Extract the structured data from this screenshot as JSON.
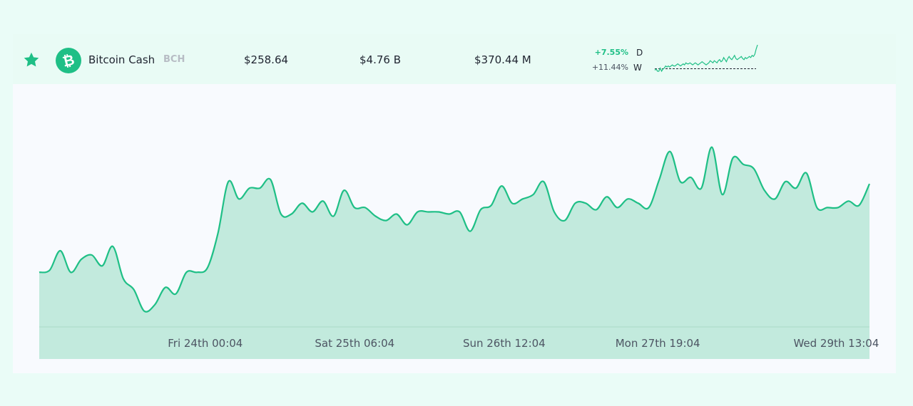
{
  "coin": {
    "name": "Bitcoin Cash",
    "symbol": "BCH",
    "price": "$258.64",
    "market_cap": "$4.76 B",
    "volume": "$370.44 M",
    "change_day": "+7.55%",
    "change_day_label": "D",
    "change_week": "+11.44%",
    "change_week_label": "W",
    "icon": "bitcoin-cash-icon",
    "favorite_icon": "star-icon"
  },
  "colors": {
    "accent": "#1fbf86",
    "fill": "#c2eadd",
    "star": "#1fbf86"
  },
  "sparkline": {
    "values": [
      10,
      11,
      9,
      9,
      12,
      9,
      11,
      12,
      14,
      13,
      14,
      13,
      14,
      15,
      14,
      14,
      15,
      16,
      15,
      14,
      15,
      16,
      15,
      17,
      16,
      16,
      17,
      16,
      15,
      16,
      17,
      16,
      15,
      16,
      17,
      18,
      17,
      16,
      15,
      16,
      17,
      19,
      18,
      17,
      19,
      18,
      17,
      19,
      20,
      18,
      19,
      22,
      20,
      18,
      21,
      23,
      21,
      20,
      22,
      24,
      21,
      20,
      21,
      22,
      23,
      21,
      20,
      22,
      21,
      22,
      23,
      22,
      24,
      23,
      25,
      30,
      34
    ],
    "baseline": 10
  },
  "chart_data": {
    "type": "area",
    "x_tick_labels": [
      "Fri 24th 00:04",
      "Sat 25th 06:04",
      "Sun 26th 12:04",
      "Mon 27th 19:04",
      "Wed 29th 13:04"
    ],
    "x_tick_positions": [
      0.2,
      0.38,
      0.56,
      0.745,
      0.96
    ],
    "values": [
      240,
      241,
      250,
      240,
      246,
      248,
      243,
      252,
      237,
      232,
      222,
      225,
      233,
      230,
      240,
      240,
      242,
      258,
      282,
      274,
      279,
      279,
      283,
      267,
      267,
      272,
      268,
      273,
      266,
      278,
      270,
      270,
      266,
      264,
      267,
      262,
      268,
      268,
      268,
      267,
      268,
      259,
      269,
      271,
      280,
      272,
      274,
      276,
      282,
      268,
      264,
      272,
      272,
      269,
      275,
      270,
      274,
      272,
      270,
      283,
      296,
      282,
      284,
      279,
      298,
      276,
      293,
      290,
      288,
      278,
      274,
      282,
      279,
      286,
      270,
      270,
      270,
      273,
      271,
      281
    ],
    "y_range": [
      215,
      318
    ]
  }
}
